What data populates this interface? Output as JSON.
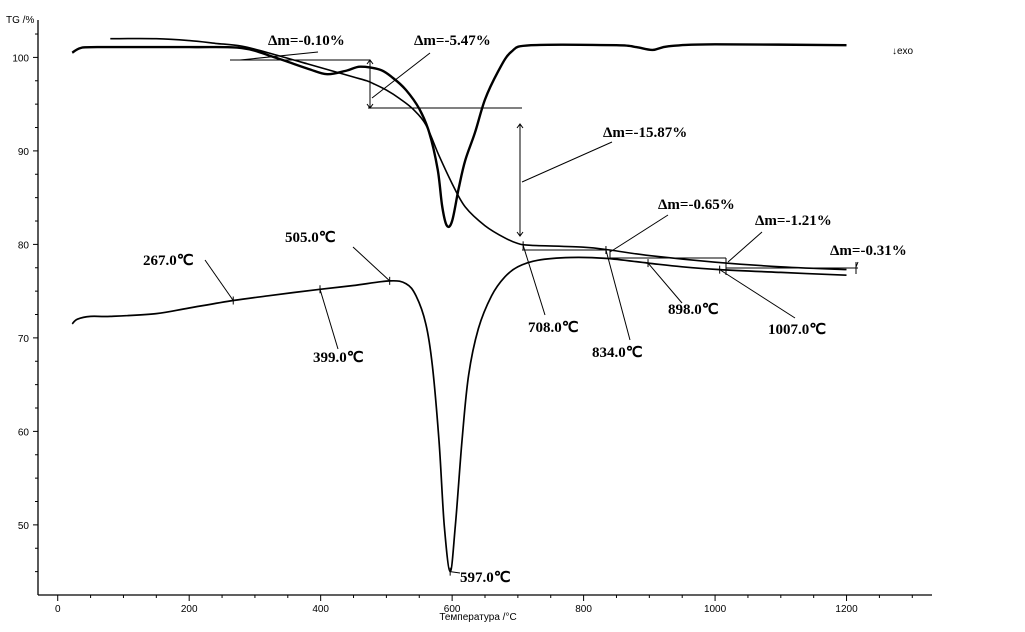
{
  "chart_data": {
    "type": "line",
    "ylabel": "TG /%",
    "xlabel": "Температура /°C",
    "exo_marker": "↓exo",
    "xlim": [
      -30,
      1330
    ],
    "ylim": [
      42.5,
      104
    ],
    "x_ticks": [
      0,
      200,
      400,
      600,
      800,
      1000,
      1200
    ],
    "y_ticks": [
      50,
      60,
      70,
      80,
      90,
      100
    ],
    "series": [
      {
        "id": "tg",
        "points": [
          [
            80,
            102.0
          ],
          [
            150,
            102.0
          ],
          [
            200,
            101.8
          ],
          [
            240,
            101.5
          ],
          [
            280,
            101.2
          ],
          [
            330,
            100.3
          ],
          [
            380,
            99.3
          ],
          [
            420,
            98.5
          ],
          [
            450,
            97.9
          ],
          [
            470,
            97.5
          ],
          [
            480,
            97.2
          ],
          [
            500,
            96.5
          ],
          [
            520,
            95.6
          ],
          [
            540,
            94.5
          ],
          [
            560,
            92.8
          ],
          [
            580,
            89.5
          ],
          [
            600,
            86.5
          ],
          [
            620,
            84.0
          ],
          [
            650,
            82.0
          ],
          [
            680,
            80.7
          ],
          [
            700,
            80.1
          ],
          [
            720,
            79.9
          ],
          [
            800,
            79.7
          ],
          [
            840,
            79.4
          ],
          [
            900,
            78.8
          ],
          [
            1000,
            78.1
          ],
          [
            1100,
            77.6
          ],
          [
            1200,
            77.3
          ]
        ]
      },
      {
        "id": "dtg",
        "points": [
          [
            22,
            100.5
          ],
          [
            35,
            101.0
          ],
          [
            60,
            101.1
          ],
          [
            200,
            101.1
          ],
          [
            280,
            101.0
          ],
          [
            330,
            100.0
          ],
          [
            380,
            98.8
          ],
          [
            410,
            98.2
          ],
          [
            440,
            98.6
          ],
          [
            460,
            99.0
          ],
          [
            490,
            98.7
          ],
          [
            510,
            97.8
          ],
          [
            530,
            96.5
          ],
          [
            550,
            94.5
          ],
          [
            565,
            92.0
          ],
          [
            578,
            88.0
          ],
          [
            585,
            84.0
          ],
          [
            592,
            82.0
          ],
          [
            600,
            82.5
          ],
          [
            610,
            86.0
          ],
          [
            620,
            89.0
          ],
          [
            635,
            92.0
          ],
          [
            650,
            95.5
          ],
          [
            670,
            98.5
          ],
          [
            690,
            100.6
          ],
          [
            720,
            101.3
          ],
          [
            850,
            101.3
          ],
          [
            880,
            101.1
          ],
          [
            905,
            100.8
          ],
          [
            930,
            101.2
          ],
          [
            1000,
            101.4
          ],
          [
            1200,
            101.3
          ]
        ]
      },
      {
        "id": "dta",
        "points": [
          [
            22,
            71.5
          ],
          [
            30,
            72.0
          ],
          [
            50,
            72.3
          ],
          [
            80,
            72.3
          ],
          [
            150,
            72.6
          ],
          [
            200,
            73.2
          ],
          [
            267,
            74.0
          ],
          [
            320,
            74.5
          ],
          [
            399,
            75.2
          ],
          [
            450,
            75.6
          ],
          [
            505,
            76.1
          ],
          [
            530,
            75.8
          ],
          [
            545,
            74.5
          ],
          [
            560,
            71.5
          ],
          [
            570,
            67.0
          ],
          [
            580,
            59.0
          ],
          [
            588,
            50.0
          ],
          [
            597,
            45.0
          ],
          [
            605,
            50.0
          ],
          [
            615,
            59.0
          ],
          [
            625,
            66.0
          ],
          [
            640,
            71.0
          ],
          [
            660,
            74.5
          ],
          [
            680,
            76.5
          ],
          [
            700,
            77.6
          ],
          [
            730,
            78.3
          ],
          [
            780,
            78.6
          ],
          [
            834,
            78.5
          ],
          [
            898,
            78.0
          ],
          [
            950,
            77.6
          ],
          [
            1007,
            77.3
          ],
          [
            1100,
            77.0
          ],
          [
            1200,
            76.7
          ]
        ]
      }
    ],
    "mass_annotations": [
      {
        "label": "Δm=-0.10%"
      },
      {
        "label": "Δm=-5.47%"
      },
      {
        "label": "Δm=-15.87%"
      },
      {
        "label": "Δm=-0.65%"
      },
      {
        "label": "Δm=-1.21%"
      },
      {
        "label": "Δm=-0.31%"
      }
    ],
    "temperature_annotations": [
      {
        "label": "267.0℃",
        "x": 267,
        "y": 74.0
      },
      {
        "label": "399.0℃",
        "x": 399,
        "y": 75.2
      },
      {
        "label": "505.0℃",
        "x": 505,
        "y": 76.1
      },
      {
        "label": "597.0℃",
        "x": 597,
        "y": 45.0
      },
      {
        "label": "708.0℃",
        "x": 708,
        "y": 79.9
      },
      {
        "label": "834.0℃",
        "x": 834,
        "y": 79.4
      },
      {
        "label": "898.0℃",
        "x": 898,
        "y": 78.0
      },
      {
        "label": "1007.0℃",
        "x": 1007,
        "y": 77.3
      }
    ]
  }
}
